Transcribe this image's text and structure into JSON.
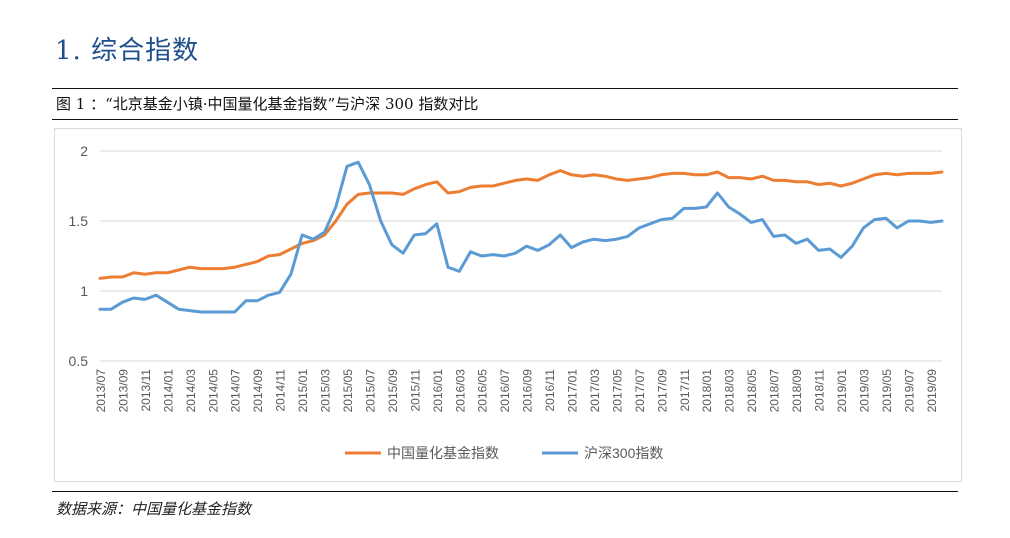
{
  "section_title": "1. 综合指数",
  "figure_caption": "图 1 ：“北京基金小镇·中国量化基金指数”与沪深 300 指数对比",
  "source_note": "数据来源：中国量化基金指数",
  "colors": {
    "series_1": "#ed7d31",
    "series_2": "#5b9bd5",
    "gridline": "#d9d9d9",
    "axis_text": "#595959"
  },
  "chart_data": {
    "type": "line",
    "title": "",
    "xlabel": "",
    "ylabel": "",
    "ylim": [
      0.5,
      2
    ],
    "yticks": [
      0.5,
      1,
      1.5,
      2
    ],
    "ytick_labels": [
      "0.5",
      "1",
      "1.5",
      "2"
    ],
    "grid": "horizontal",
    "legend_position": "bottom",
    "x_tick_labels": [
      "2013/07",
      "2013/09",
      "2013/11",
      "2014/01",
      "2014/03",
      "2014/05",
      "2014/07",
      "2014/09",
      "2014/11",
      "2015/01",
      "2015/03",
      "2015/05",
      "2015/07",
      "2015/09",
      "2015/11",
      "2016/01",
      "2016/03",
      "2016/05",
      "2016/07",
      "2016/09",
      "2016/11",
      "2017/01",
      "2017/03",
      "2017/05",
      "2017/07",
      "2017/09",
      "2017/11",
      "2018/01",
      "2018/03",
      "2018/05",
      "2018/07",
      "2018/09",
      "2018/11",
      "2019/01",
      "2019/03",
      "2019/05",
      "2019/07",
      "2019/09"
    ],
    "x": [
      "2013/07",
      "2013/08",
      "2013/09",
      "2013/10",
      "2013/11",
      "2013/12",
      "2014/01",
      "2014/02",
      "2014/03",
      "2014/04",
      "2014/05",
      "2014/06",
      "2014/07",
      "2014/08",
      "2014/09",
      "2014/10",
      "2014/11",
      "2014/12",
      "2015/01",
      "2015/02",
      "2015/03",
      "2015/04",
      "2015/05",
      "2015/06",
      "2015/07",
      "2015/08",
      "2015/09",
      "2015/10",
      "2015/11",
      "2015/12",
      "2016/01",
      "2016/02",
      "2016/03",
      "2016/04",
      "2016/05",
      "2016/06",
      "2016/07",
      "2016/08",
      "2016/09",
      "2016/10",
      "2016/11",
      "2016/12",
      "2017/01",
      "2017/02",
      "2017/03",
      "2017/04",
      "2017/05",
      "2017/06",
      "2017/07",
      "2017/08",
      "2017/09",
      "2017/10",
      "2017/11",
      "2017/12",
      "2018/01",
      "2018/02",
      "2018/03",
      "2018/04",
      "2018/05",
      "2018/06",
      "2018/07",
      "2018/08",
      "2018/09",
      "2018/10",
      "2018/11",
      "2018/12",
      "2019/01",
      "2019/02",
      "2019/03",
      "2019/04",
      "2019/05",
      "2019/06",
      "2019/07",
      "2019/08",
      "2019/09",
      "2019/10"
    ],
    "series": [
      {
        "name": "中国量化基金指数",
        "values": [
          1.09,
          1.1,
          1.1,
          1.13,
          1.12,
          1.13,
          1.13,
          1.15,
          1.17,
          1.16,
          1.16,
          1.16,
          1.17,
          1.19,
          1.21,
          1.25,
          1.26,
          1.3,
          1.34,
          1.36,
          1.4,
          1.5,
          1.62,
          1.69,
          1.7,
          1.7,
          1.7,
          1.69,
          1.73,
          1.76,
          1.78,
          1.7,
          1.71,
          1.74,
          1.75,
          1.75,
          1.77,
          1.79,
          1.8,
          1.79,
          1.83,
          1.86,
          1.83,
          1.82,
          1.83,
          1.82,
          1.8,
          1.79,
          1.8,
          1.81,
          1.83,
          1.84,
          1.84,
          1.83,
          1.83,
          1.85,
          1.81,
          1.81,
          1.8,
          1.82,
          1.79,
          1.79,
          1.78,
          1.78,
          1.76,
          1.77,
          1.75,
          1.77,
          1.8,
          1.83,
          1.84,
          1.83,
          1.84,
          1.84,
          1.84,
          1.85
        ]
      },
      {
        "name": "沪深300指数",
        "values": [
          0.87,
          0.87,
          0.92,
          0.95,
          0.94,
          0.97,
          0.92,
          0.87,
          0.86,
          0.85,
          0.85,
          0.85,
          0.85,
          0.93,
          0.93,
          0.97,
          0.99,
          1.12,
          1.4,
          1.37,
          1.42,
          1.6,
          1.89,
          1.92,
          1.76,
          1.5,
          1.33,
          1.27,
          1.4,
          1.41,
          1.48,
          1.17,
          1.14,
          1.28,
          1.25,
          1.26,
          1.25,
          1.27,
          1.32,
          1.29,
          1.33,
          1.4,
          1.31,
          1.35,
          1.37,
          1.36,
          1.37,
          1.39,
          1.45,
          1.48,
          1.51,
          1.52,
          1.59,
          1.59,
          1.6,
          1.7,
          1.6,
          1.55,
          1.49,
          1.51,
          1.39,
          1.4,
          1.34,
          1.37,
          1.29,
          1.3,
          1.24,
          1.32,
          1.45,
          1.51,
          1.52,
          1.45,
          1.5,
          1.5,
          1.49,
          1.5
        ]
      }
    ]
  }
}
